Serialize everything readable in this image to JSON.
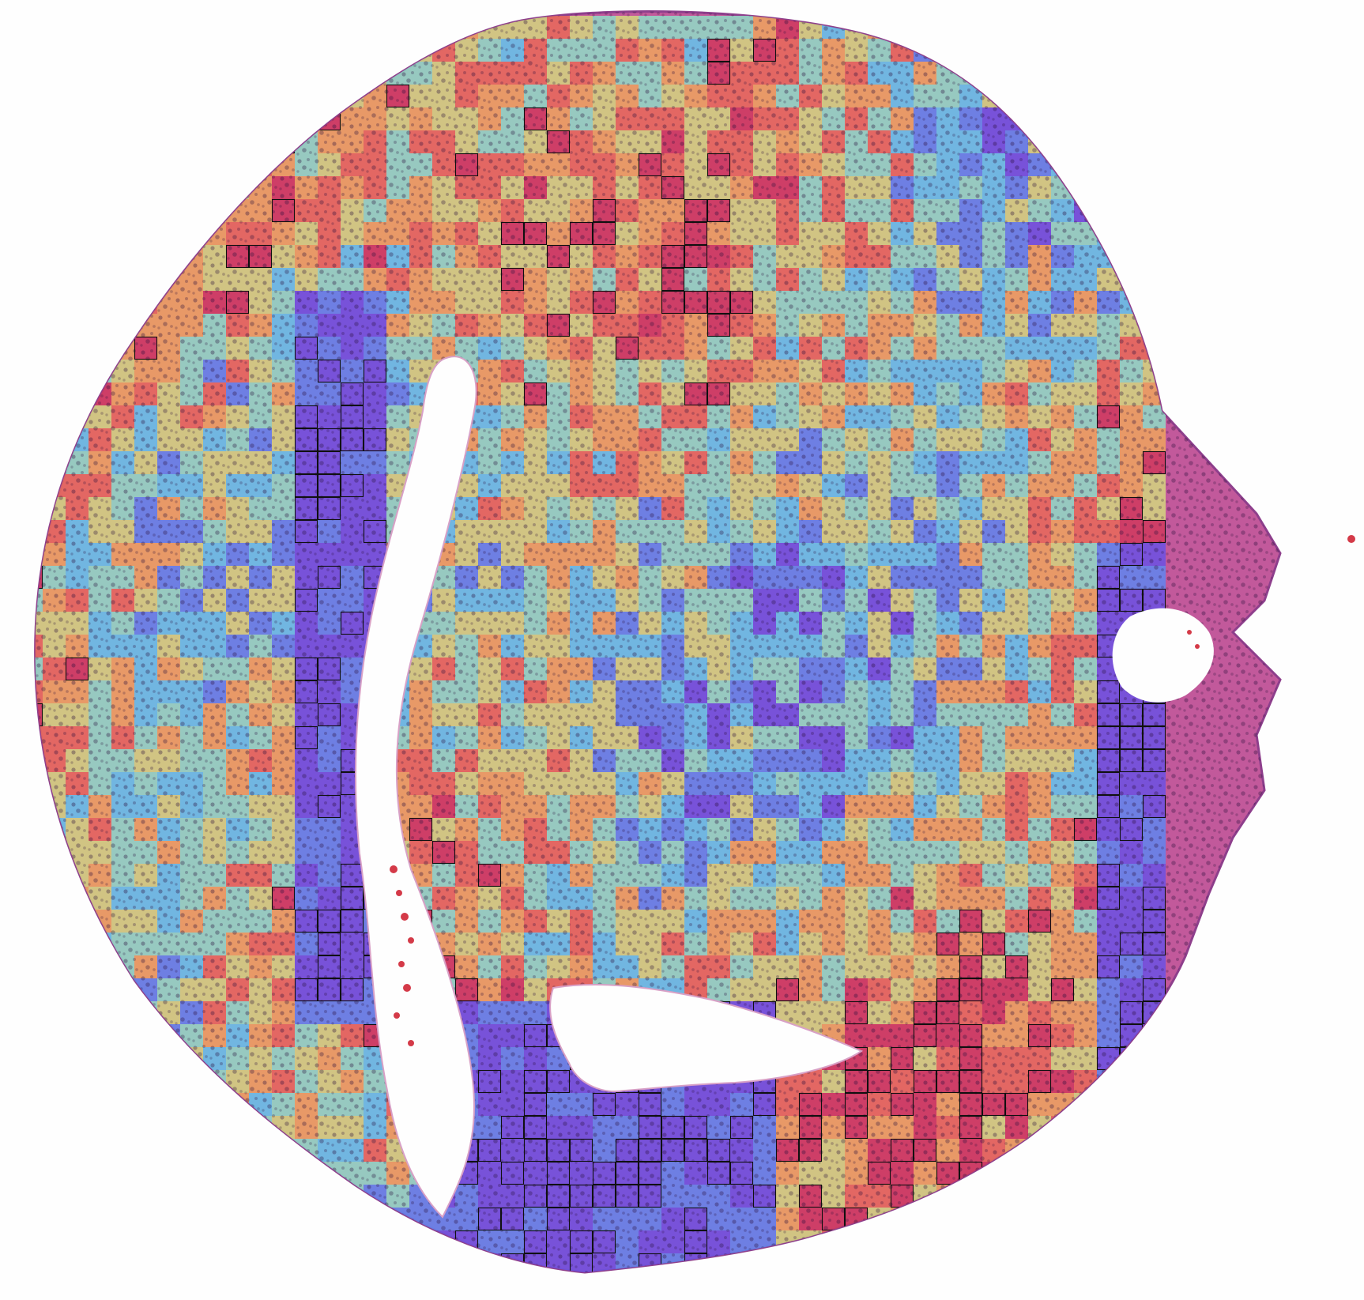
{
  "image": {
    "subject": "tissue-microarray-core",
    "background_color": "#fefefe",
    "tissue_colors": {
      "stroma": "#c2599b",
      "stroma_dark": "#8e3f8c",
      "red_blood_cells": "#d43a48"
    },
    "heatmap_palette": [
      "#6b52e3",
      "#5f86ef",
      "#63c6ec",
      "#8fdcc6",
      "#d3d67f",
      "#eea45e",
      "#e86a5a",
      "#cf3a5e"
    ],
    "highlight_outline_color": "#101010",
    "overlay_opacity": 0.86
  }
}
